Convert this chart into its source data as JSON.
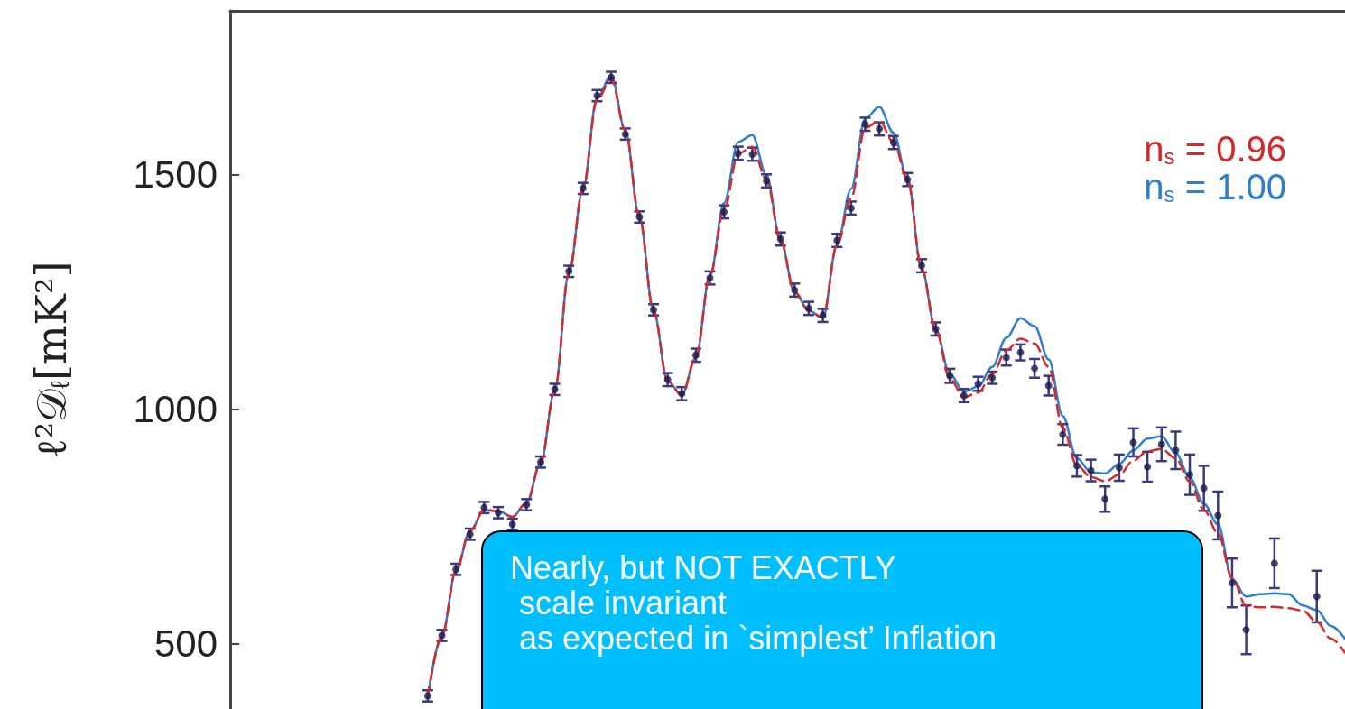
{
  "chart_data": {
    "type": "scatter",
    "ylabel": "ℓ²𝒟$_{ℓ}$[mK²]",
    "categories": [
      null,
      null,
      null,
      null,
      null,
      null,
      null,
      null,
      null,
      null,
      null,
      null,
      null,
      null,
      null,
      null,
      null,
      null,
      null,
      null,
      null,
      null,
      null,
      null,
      null,
      null,
      null,
      null,
      null,
      null,
      null,
      null,
      null,
      null,
      null,
      null,
      null,
      null,
      null,
      null,
      null,
      null,
      null,
      null,
      null,
      null,
      null,
      null,
      null,
      null,
      null,
      null,
      null,
      null,
      null,
      null,
      null,
      null,
      null,
      null,
      null,
      null,
      null,
      null,
      null,
      null,
      null,
      null,
      null,
      null,
      null,
      null,
      null,
      null,
      null,
      null,
      null,
      null,
      null,
      null
    ],
    "ylim": [
      360,
      1850
    ],
    "yticks": [
      500,
      1000,
      1500
    ],
    "tick_labels": "y",
    "grid": false,
    "legend": "top right",
    "series": [
      {
        "name": "n$_{s}$ = 0.96",
        "type": "line",
        "color": "#d62a2a",
        "line_style": "dashed",
        "marker": "none",
        "values": [
          null,
          null,
          null,
          null,
          null,
          null,
          null,
          null,
          null,
          null,
          null,
          null,
          null,
          null,
          385,
          515,
          655,
          740,
          785,
          782,
          770,
          800,
          885,
          1040,
          1290,
          1470,
          1660,
          1705,
          1595,
          1410,
          1210,
          1060,
          1030,
          1110,
          1285,
          1425,
          1545,
          1560,
          1490,
          1360,
          1250,
          1210,
          1195,
          1350,
          1450,
          1600,
          1615,
          1570,
          1490,
          1300,
          1170,
          1065,
          1025,
          1035,
          1075,
          1125,
          1150,
          1140,
          1090,
          960,
          880,
          855,
          846,
          860,
          890,
          910,
          915,
          895,
          845,
          785,
          735,
          640,
          580,
          577,
          578,
          575,
          570,
          546,
          510,
          480
        ]
      },
      {
        "name": "n$_{s}$ = 1.00",
        "type": "line",
        "color": "#2f7fd0",
        "line_style": "solid",
        "marker": "none",
        "values": [
          null,
          null,
          null,
          null,
          null,
          null,
          null,
          null,
          null,
          null,
          null,
          null,
          null,
          null,
          385,
          515,
          655,
          740,
          785,
          782,
          770,
          800,
          885,
          1040,
          1290,
          1470,
          1665,
          1712,
          1595,
          1410,
          1210,
          1060,
          1030,
          1110,
          1285,
          1440,
          1570,
          1585,
          1500,
          1360,
          1250,
          1210,
          1195,
          1350,
          1470,
          1620,
          1645,
          1590,
          1490,
          1300,
          1170,
          1075,
          1037,
          1048,
          1090,
          1152,
          1194,
          1177,
          1106,
          985,
          895,
          865,
          863,
          883,
          912,
          937,
          942,
          906,
          854,
          798,
          754,
          638,
          600,
          605,
          607,
          605,
          581,
          571,
          537,
          510
        ]
      },
      {
        "color": "#1b1b4d",
        "marker": "circle",
        "values": [
          null,
          null,
          null,
          null,
          null,
          null,
          null,
          null,
          null,
          null,
          null,
          null,
          null,
          null,
          388,
          517,
          658,
          733,
          790,
          779,
          754,
          796,
          887,
          1042,
          1294,
          1471,
          1669,
          1708,
          1587,
          1410,
          1212,
          1063,
          1033,
          1115,
          1280,
          1421,
          1546,
          1544,
          1487,
          1363,
          1254,
          1215,
          1200,
          1360,
          1429,
          1608,
          1598,
          1569,
          1490,
          1306,
          1171,
          1071,
          1029,
          1054,
          1067,
          1110,
          1121,
          1087,
          1050,
          946,
          879,
          869,
          808,
          875,
          929,
          877,
          925,
          912,
          860,
          831,
          773,
          629,
          529,
          null,
          671,
          null,
          null,
          600,
          null,
          null
        ],
        "errors": [
          null,
          null,
          null,
          null,
          null,
          null,
          null,
          null,
          null,
          null,
          null,
          null,
          null,
          null,
          12,
          12,
          12,
          12,
          12,
          12,
          12,
          12,
          12,
          12,
          12,
          12,
          12,
          12,
          12,
          12,
          12,
          14,
          14,
          14,
          14,
          14,
          14,
          14,
          14,
          14,
          14,
          14,
          14,
          14,
          14,
          14,
          14,
          14,
          14,
          14,
          14,
          15,
          14,
          15,
          13,
          17,
          17,
          20,
          21,
          22,
          23,
          23,
          27,
          28,
          30,
          32,
          36,
          40,
          43,
          48,
          51,
          52,
          52,
          null,
          53,
          null,
          null,
          55,
          null,
          null
        ]
      }
    ],
    "annotations": [
      "Nearly, but NOT EXACTLY\n scale invariant\n as expected in `simplest’ Inflation"
    ]
  }
}
